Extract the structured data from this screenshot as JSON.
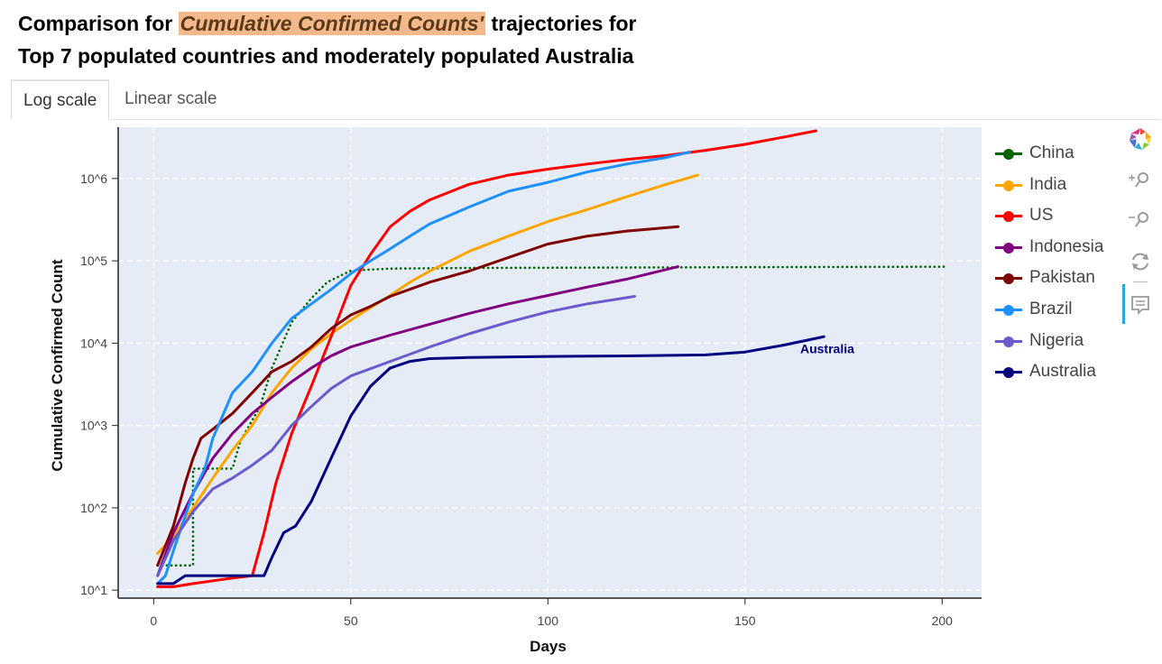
{
  "title": {
    "line1_prefix": "Comparison for ",
    "line1_highlight": "Cumulative Confirmed Counts'",
    "line1_suffix": " trajectories for",
    "line2": "Top 7 populated countries and moderately populated Australia"
  },
  "tabs": [
    {
      "label": "Log scale",
      "active": true
    },
    {
      "label": "Linear scale",
      "active": false
    }
  ],
  "toolbar": {
    "logo": "bokeh-logo-icon",
    "tools": [
      "wheel-zoom-in-icon",
      "wheel-zoom-out-icon",
      "reset-icon",
      "hover-tooltip-icon"
    ]
  },
  "colors": {
    "plot_background": "#e5ecf6",
    "grid": "#ffffff",
    "highlight": "#f4b98b"
  },
  "chart_data": {
    "type": "line",
    "xlabel": "Days",
    "ylabel": "Cumulative Confirmed Count",
    "x_ticks": [
      0,
      50,
      100,
      150,
      200
    ],
    "y_scale": "log",
    "y_ticks": [
      10,
      100,
      1000,
      10000,
      100000,
      1000000
    ],
    "y_tick_labels": [
      "10^1",
      "10^2",
      "10^3",
      "10^4",
      "10^5",
      "10^6"
    ],
    "xlim": [
      -9,
      210
    ],
    "ylim": [
      8,
      4200000
    ],
    "grid": true,
    "legend_position": "right",
    "annotation": {
      "text": "Australia",
      "x": 164,
      "y": 7600,
      "color": "#000080"
    },
    "series": [
      {
        "name": "China",
        "color": "#006400",
        "dash": "dotted",
        "x": [
          1,
          10,
          10,
          13,
          20,
          22,
          27,
          30,
          35,
          40,
          44,
          50,
          60,
          80,
          120,
          160,
          201
        ],
        "y": [
          20,
          20,
          300,
          300,
          300,
          650,
          1700,
          5000,
          18000,
          35000,
          55000,
          76000,
          80500,
          82000,
          83000,
          84000,
          85000
        ]
      },
      {
        "name": "India",
        "color": "#ffa500",
        "dash": "solid",
        "x": [
          1,
          5,
          10,
          15,
          20,
          25,
          30,
          35,
          40,
          45,
          50,
          55,
          60,
          65,
          70,
          80,
          90,
          100,
          110,
          120,
          130,
          138
        ],
        "y": [
          28,
          45,
          100,
          230,
          500,
          1000,
          2500,
          5000,
          8500,
          13000,
          19000,
          27000,
          38000,
          55000,
          75000,
          130000,
          200000,
          300000,
          420000,
          600000,
          850000,
          1100000
        ]
      },
      {
        "name": "US",
        "color": "#ff0000",
        "dash": "solid",
        "x": [
          1,
          5,
          10,
          15,
          20,
          25,
          28,
          31,
          35,
          40,
          45,
          50,
          55,
          60,
          65,
          70,
          80,
          90,
          100,
          110,
          120,
          130,
          140,
          150,
          160,
          168
        ],
        "y": [
          11,
          11,
          12,
          13,
          14,
          15,
          50,
          200,
          800,
          3000,
          12000,
          50000,
          120000,
          260000,
          400000,
          550000,
          850000,
          1100000,
          1300000,
          1500000,
          1700000,
          1900000,
          2200000,
          2600000,
          3200000,
          3800000
        ]
      },
      {
        "name": "Indonesia",
        "color": "#800080",
        "dash": "solid",
        "x": [
          1,
          5,
          10,
          15,
          20,
          25,
          30,
          35,
          40,
          45,
          50,
          60,
          70,
          80,
          90,
          100,
          110,
          120,
          133
        ],
        "y": [
          15,
          50,
          150,
          400,
          800,
          1400,
          2200,
          3400,
          5000,
          7000,
          9000,
          12500,
          17000,
          23000,
          30000,
          38000,
          48000,
          60000,
          85000
        ]
      },
      {
        "name": "Pakistan",
        "color": "#800000",
        "dash": "solid",
        "x": [
          1,
          5,
          8,
          10,
          12,
          15,
          20,
          25,
          30,
          35,
          40,
          45,
          50,
          55,
          60,
          70,
          80,
          90,
          100,
          110,
          120,
          133
        ],
        "y": [
          20,
          60,
          200,
          400,
          700,
          900,
          1400,
          2500,
          4500,
          6000,
          9000,
          15000,
          22000,
          28000,
          37000,
          55000,
          75000,
          110000,
          160000,
          200000,
          230000,
          260000
        ]
      },
      {
        "name": "Brazil",
        "color": "#1e90ff",
        "dash": "solid",
        "x": [
          1,
          3,
          5,
          8,
          10,
          13,
          15,
          18,
          20,
          25,
          30,
          35,
          40,
          45,
          50,
          55,
          60,
          65,
          70,
          80,
          90,
          100,
          110,
          120,
          130,
          136
        ],
        "y": [
          12,
          15,
          30,
          80,
          150,
          300,
          700,
          1500,
          2500,
          4500,
          10000,
          20000,
          30000,
          45000,
          70000,
          100000,
          140000,
          200000,
          280000,
          450000,
          700000,
          900000,
          1200000,
          1500000,
          1800000,
          2100000
        ]
      },
      {
        "name": "Nigeria",
        "color": "#6a5acd",
        "dash": "solid",
        "x": [
          1,
          5,
          10,
          15,
          20,
          25,
          30,
          35,
          40,
          45,
          50,
          60,
          70,
          80,
          90,
          100,
          110,
          122
        ],
        "y": [
          15,
          40,
          90,
          170,
          230,
          330,
          500,
          1000,
          1700,
          2800,
          4000,
          6000,
          9000,
          13000,
          18000,
          24000,
          30000,
          37000
        ]
      },
      {
        "name": "Australia",
        "color": "#000080",
        "dash": "solid",
        "x": [
          1,
          5,
          8,
          10,
          15,
          20,
          25,
          28,
          30,
          33,
          36,
          40,
          45,
          50,
          55,
          60,
          65,
          70,
          80,
          100,
          120,
          140,
          150,
          160,
          170
        ],
        "y": [
          12,
          12,
          15,
          15,
          15,
          15,
          15,
          15,
          25,
          50,
          60,
          120,
          400,
          1300,
          3000,
          5000,
          6000,
          6500,
          6700,
          6900,
          7000,
          7200,
          7800,
          9500,
          12000
        ]
      }
    ]
  }
}
